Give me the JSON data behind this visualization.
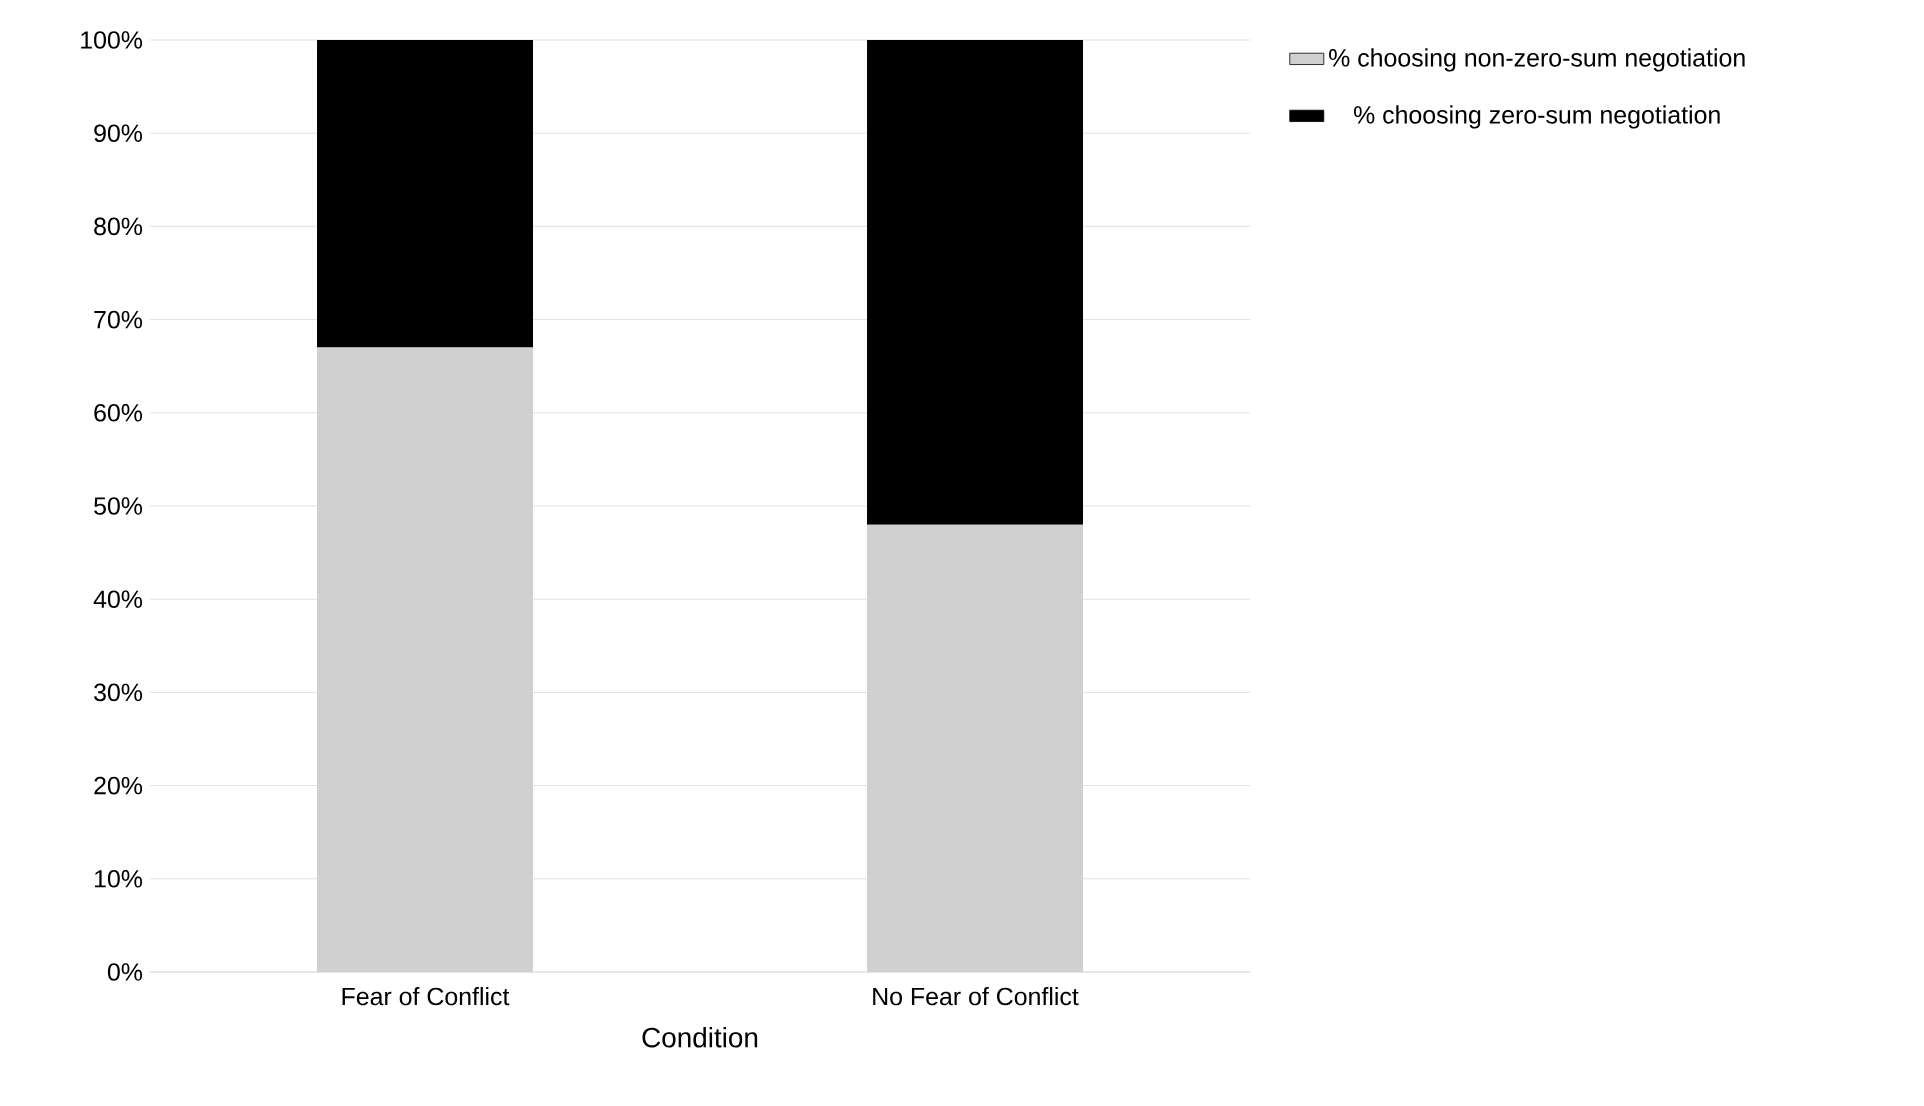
{
  "chart_data": {
    "type": "bar",
    "stacked": true,
    "xlabel": "Condition",
    "categories": [
      "Fear of Conflict",
      "No Fear of Conflict"
    ],
    "series": [
      {
        "name": "% choosing non-zero-sum negotiation",
        "color": "#d0d0d0",
        "values": [
          67,
          48
        ]
      },
      {
        "name": "% choosing zero-sum negotiation",
        "color": "#000000",
        "values": [
          33,
          52
        ]
      }
    ],
    "ylim": [
      0,
      100
    ],
    "yticks": [
      {
        "value": 0,
        "label": "0%"
      },
      {
        "value": 10,
        "label": "10%"
      },
      {
        "value": 20,
        "label": "20%"
      },
      {
        "value": 30,
        "label": "30%"
      },
      {
        "value": 40,
        "label": "40%"
      },
      {
        "value": 50,
        "label": "50%"
      },
      {
        "value": 60,
        "label": "60%"
      },
      {
        "value": 70,
        "label": "70%"
      },
      {
        "value": 80,
        "label": "80%"
      },
      {
        "value": 90,
        "label": "90%"
      },
      {
        "value": 100,
        "label": "100%"
      }
    ],
    "grid": "y",
    "legend": "right"
  }
}
